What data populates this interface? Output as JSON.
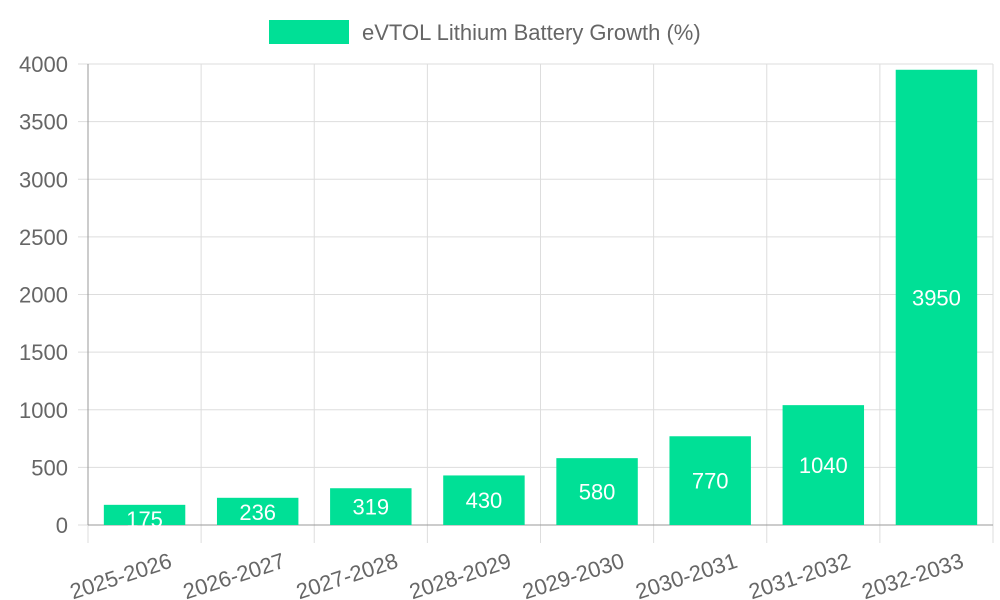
{
  "chart_data": {
    "type": "bar",
    "categories": [
      "2025-2026",
      "2026-2027",
      "2027-2028",
      "2028-2029",
      "2029-2030",
      "2030-2031",
      "2031-2032",
      "2032-2033"
    ],
    "series": [
      {
        "name": "eVTOL Lithium Battery Growth (%)",
        "values": [
          175,
          236,
          319,
          430,
          580,
          770,
          1040,
          3950
        ],
        "color": "#00e096"
      }
    ],
    "title": "",
    "xlabel": "",
    "ylabel": "",
    "ylim": [
      0,
      4000
    ],
    "yticks": [
      0,
      500,
      1000,
      1500,
      2000,
      2500,
      3000,
      3500,
      4000
    ],
    "grid": true,
    "legend": "top-center",
    "data_labels": true
  }
}
